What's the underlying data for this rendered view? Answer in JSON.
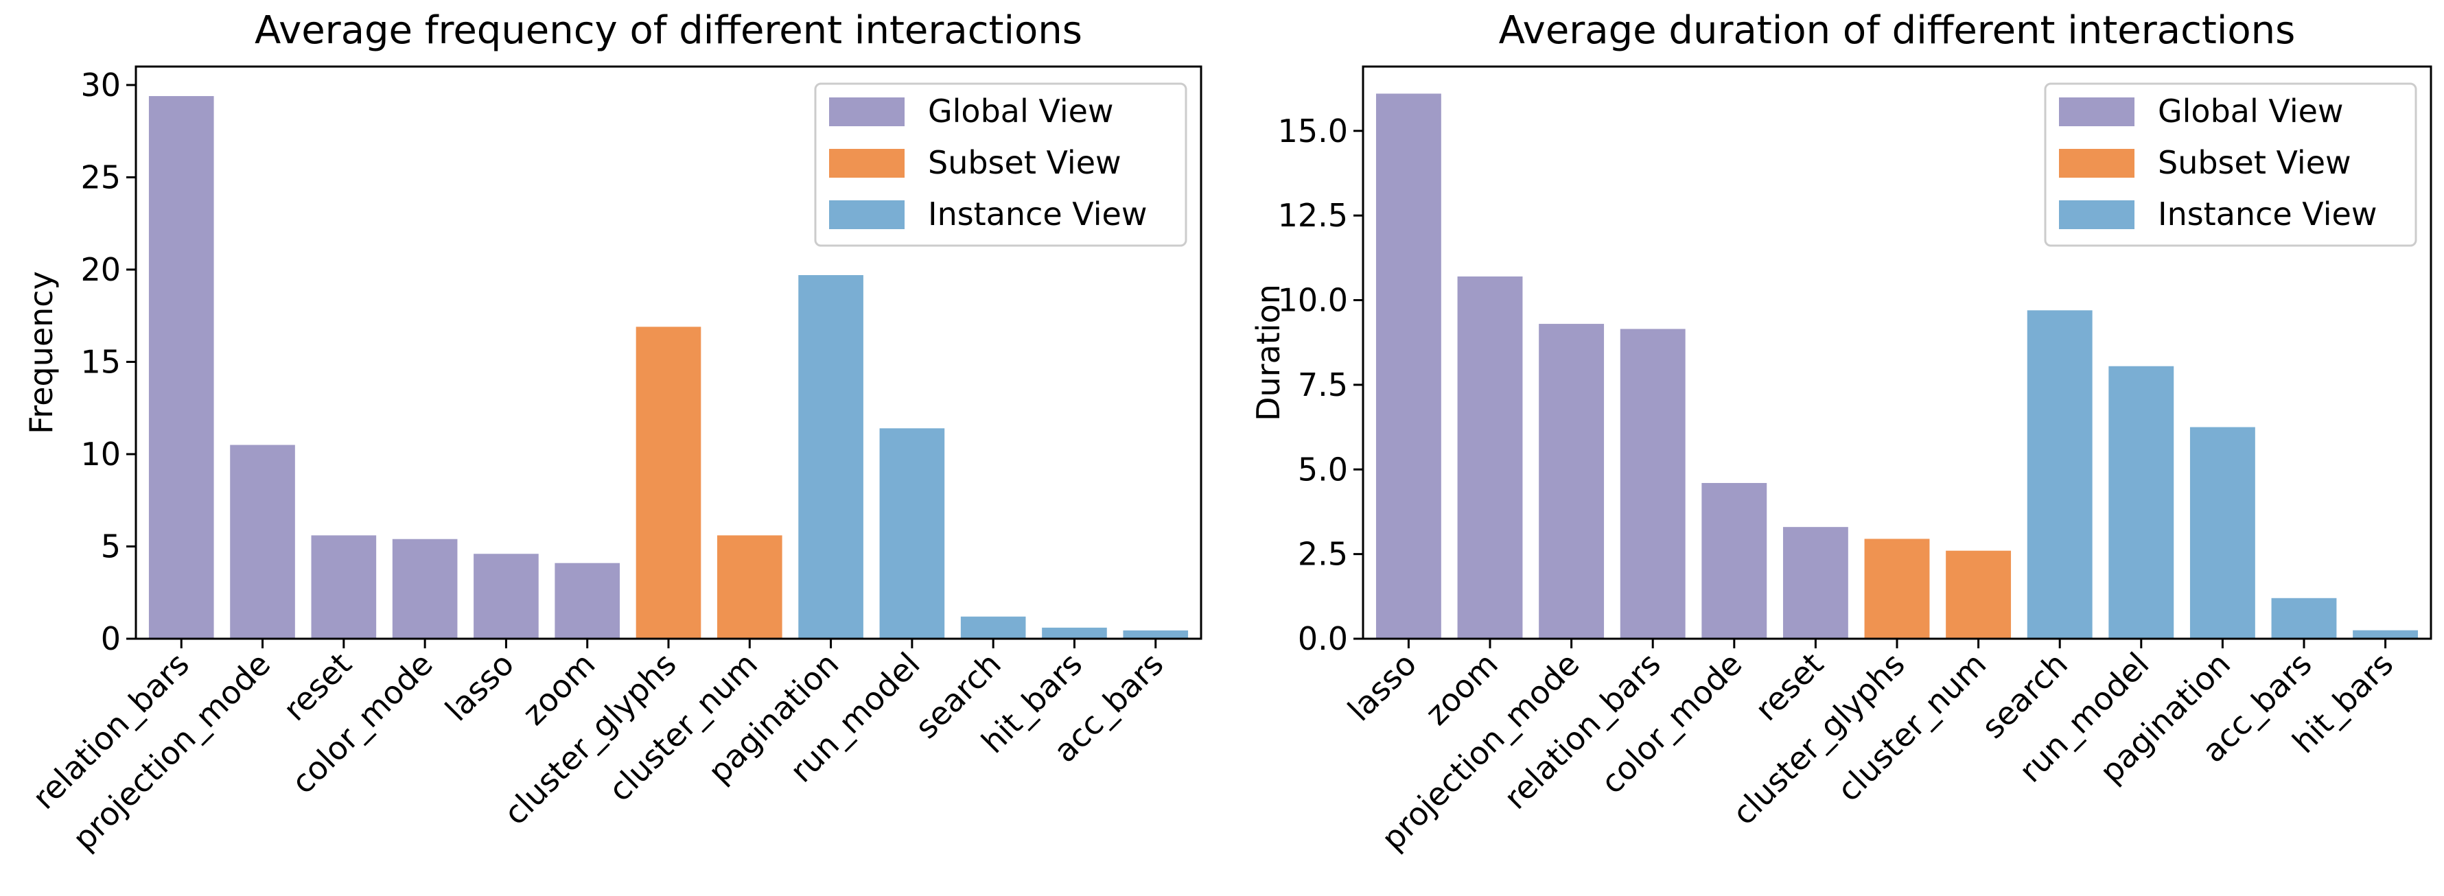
{
  "colors": {
    "global": "#a09bc6",
    "subset": "#ef9351",
    "instance": "#7aaed3"
  },
  "legend_labels": [
    "Global View",
    "Subset View",
    "Instance View"
  ],
  "chart_data": [
    {
      "type": "bar",
      "title": "Average frequency of different interactions",
      "xlabel": "",
      "ylabel": "Frequency",
      "ylim": [
        0,
        31
      ],
      "yticks": [
        0,
        5,
        10,
        15,
        20,
        25,
        30
      ],
      "ytick_labels": [
        "0",
        "5",
        "10",
        "15",
        "20",
        "25",
        "30"
      ],
      "legend_position": "top-right",
      "categories": [
        "relation_bars",
        "projection_mode",
        "reset",
        "color_mode",
        "lasso",
        "zoom",
        "cluster_glyphs",
        "cluster_num",
        "pagination",
        "run_model",
        "search",
        "hit_bars",
        "acc_bars"
      ],
      "values": [
        29.4,
        10.5,
        5.6,
        5.4,
        4.6,
        4.1,
        16.9,
        5.6,
        19.7,
        11.4,
        1.2,
        0.6,
        0.45
      ],
      "groups": [
        "global",
        "global",
        "global",
        "global",
        "global",
        "global",
        "subset",
        "subset",
        "instance",
        "instance",
        "instance",
        "instance",
        "instance"
      ]
    },
    {
      "type": "bar",
      "title": "Average duration of different interactions",
      "xlabel": "",
      "ylabel": "Duration",
      "ylim": [
        0,
        16.9
      ],
      "yticks": [
        0,
        2.5,
        5,
        7.5,
        10,
        12.5,
        15
      ],
      "ytick_labels": [
        "0.0",
        "2.5",
        "5.0",
        "7.5",
        "10.0",
        "12.5",
        "15.0"
      ],
      "legend_position": "top-right",
      "categories": [
        "lasso",
        "zoom",
        "projection_mode",
        "relation_bars",
        "color_mode",
        "reset",
        "cluster_glyphs",
        "cluster_num",
        "search",
        "run_model",
        "pagination",
        "acc_bars",
        "hit_bars"
      ],
      "values": [
        16.1,
        10.7,
        9.3,
        9.15,
        4.6,
        3.3,
        2.95,
        2.6,
        9.7,
        8.05,
        6.25,
        1.2,
        0.25
      ],
      "groups": [
        "global",
        "global",
        "global",
        "global",
        "global",
        "global",
        "subset",
        "subset",
        "instance",
        "instance",
        "instance",
        "instance",
        "instance"
      ]
    }
  ]
}
